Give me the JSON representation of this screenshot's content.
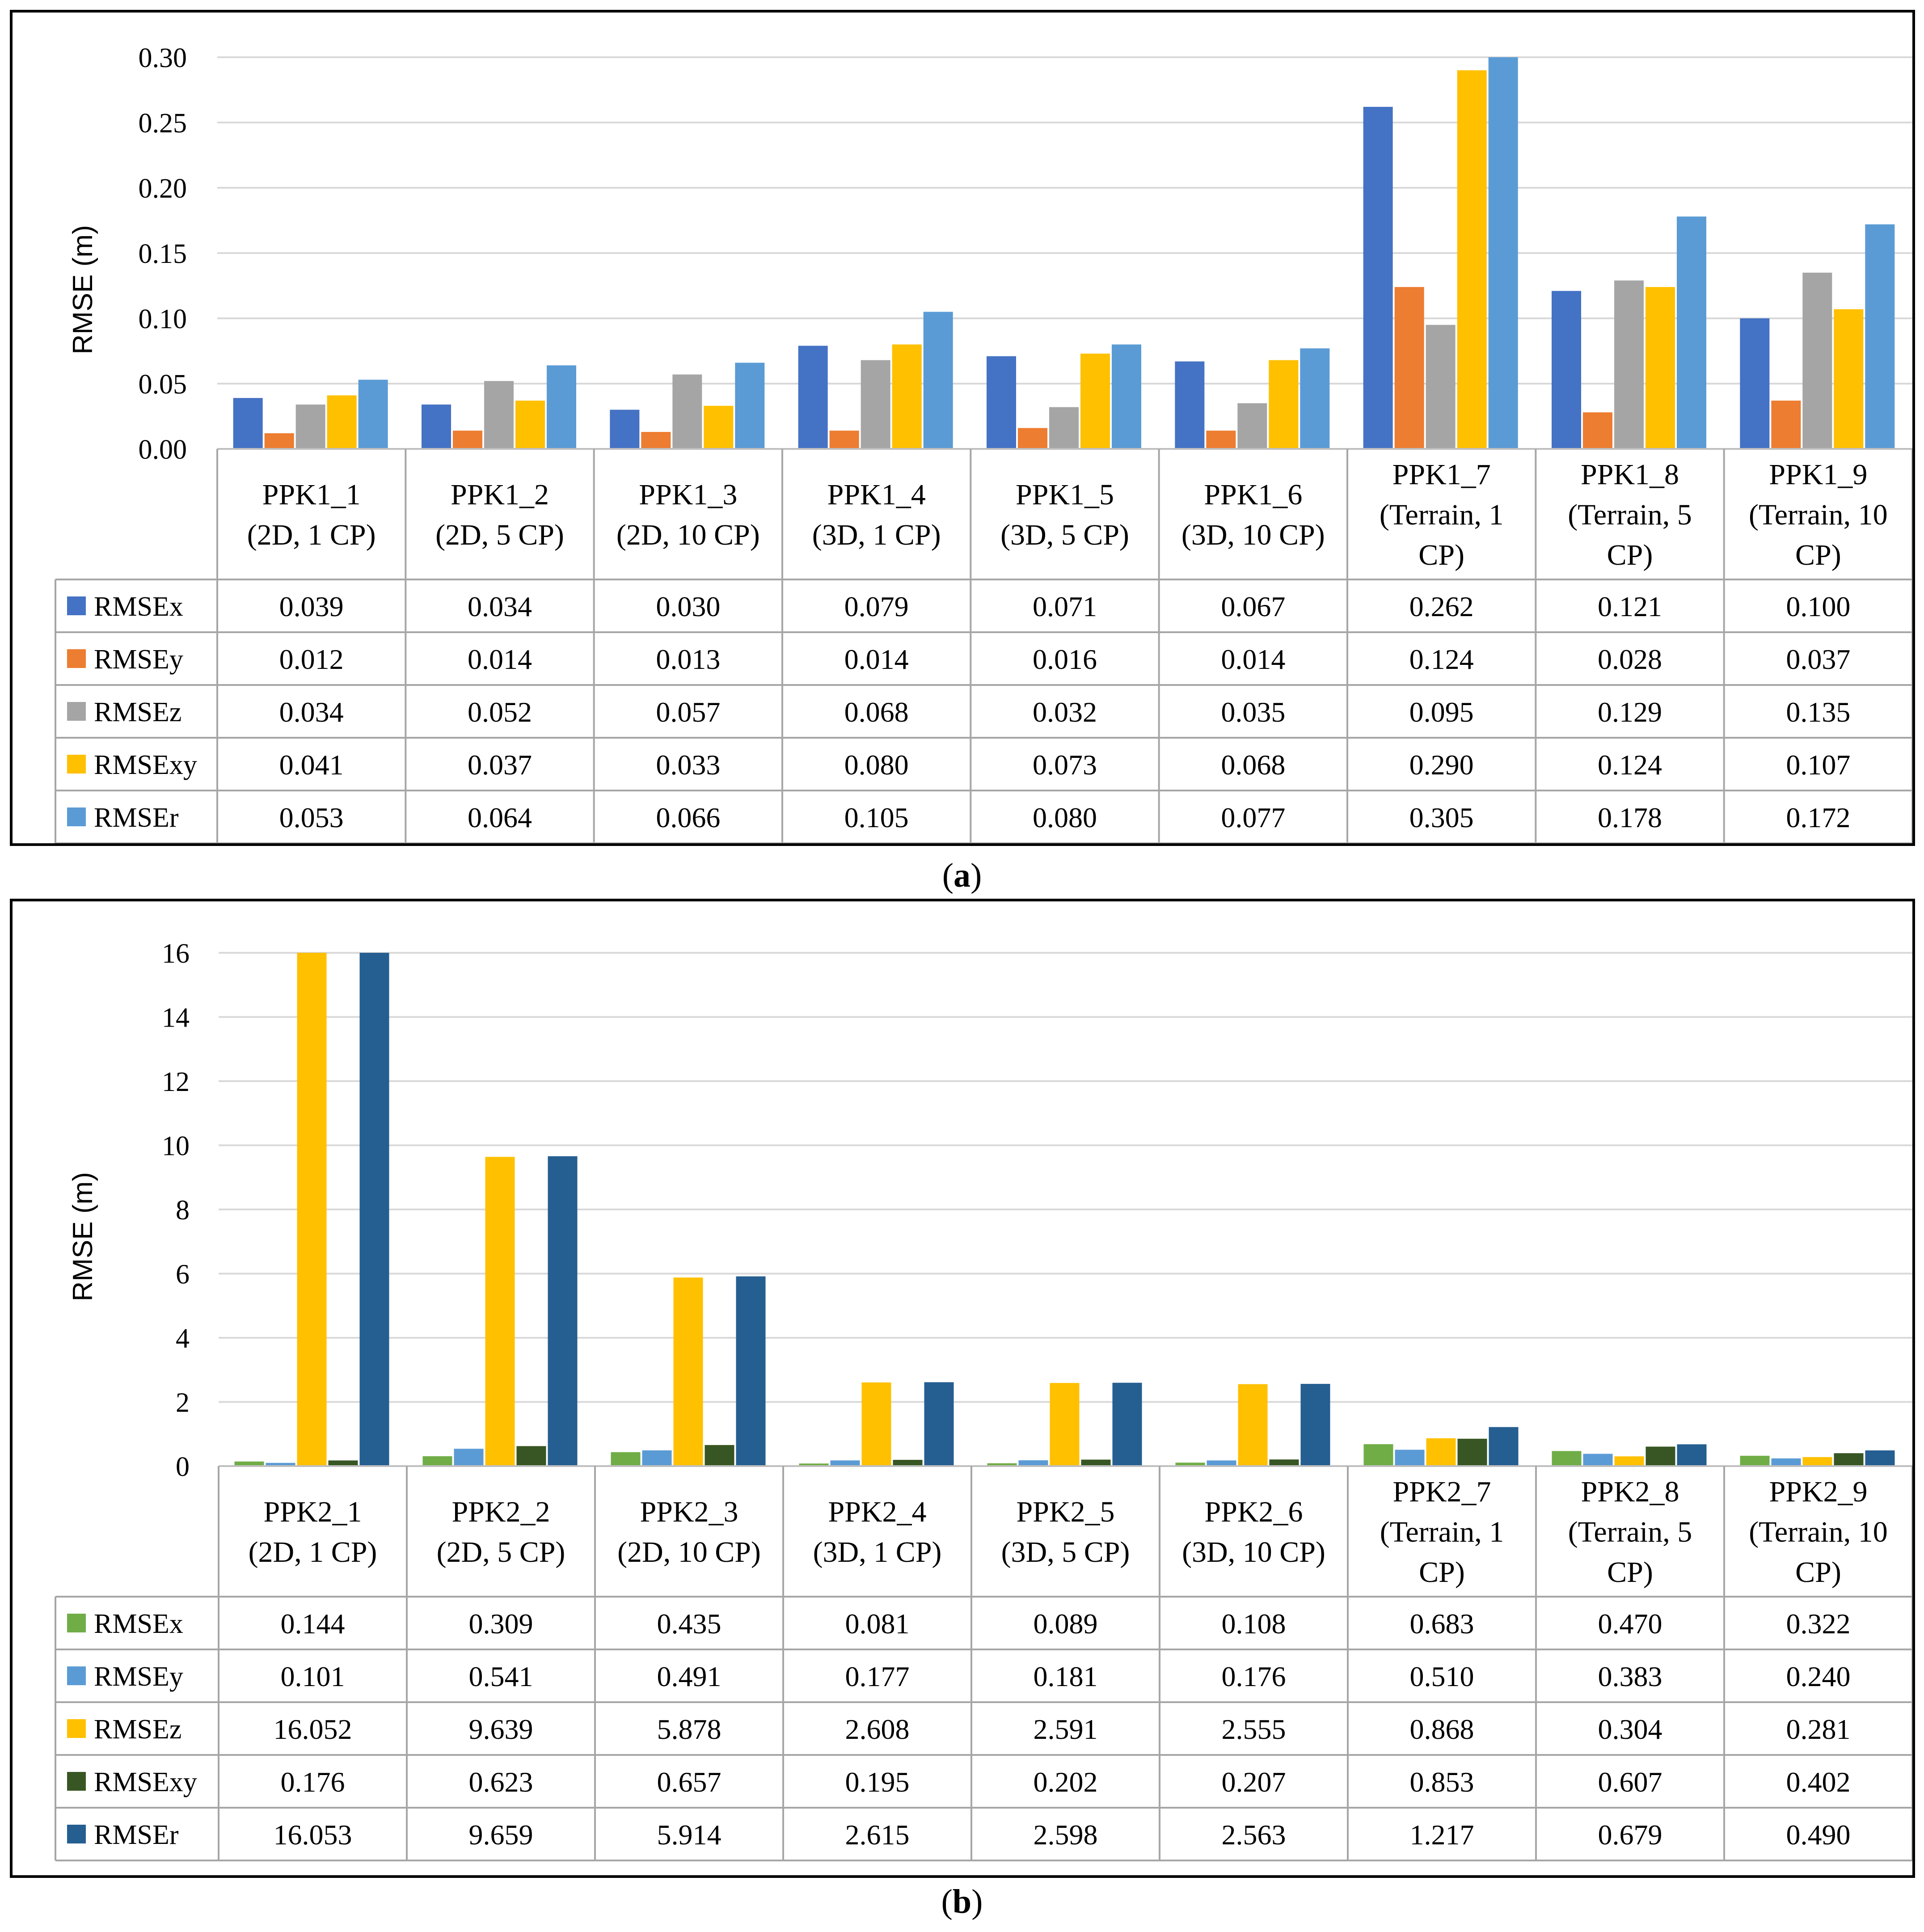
{
  "captions": {
    "a_open": "(",
    "a_letter": "a",
    "a_close": ")",
    "b_open": "(",
    "b_letter": "b",
    "b_close": ")"
  },
  "chart_data": [
    {
      "type": "bar",
      "panel": "a",
      "ylabel": "RMSE (m)",
      "ylim": [
        0,
        0.3
      ],
      "yticks": [
        "0.00",
        "0.05",
        "0.10",
        "0.15",
        "0.20",
        "0.25",
        "0.30"
      ],
      "grid": true,
      "legend": "data table",
      "categories": [
        [
          "PPK1_1",
          "(2D, 1 CP)"
        ],
        [
          "PPK1_2",
          "(2D, 5 CP)"
        ],
        [
          "PPK1_3",
          "(2D, 10 CP)"
        ],
        [
          "PPK1_4",
          "(3D, 1 CP)"
        ],
        [
          "PPK1_5",
          "(3D, 5 CP)"
        ],
        [
          "PPK1_6",
          "(3D, 10 CP)"
        ],
        [
          "PPK1_7",
          "(Terrain, 1",
          "CP)"
        ],
        [
          "PPK1_8",
          "(Terrain, 5",
          "CP)"
        ],
        [
          "PPK1_9",
          "(Terrain, 10",
          "CP)"
        ]
      ],
      "series": [
        {
          "name": "RMSEx",
          "color": "#4472C4",
          "values": [
            0.039,
            0.034,
            0.03,
            0.079,
            0.071,
            0.067,
            0.262,
            0.121,
            0.1
          ],
          "labels": [
            "0.039",
            "0.034",
            "0.030",
            "0.079",
            "0.071",
            "0.067",
            "0.262",
            "0.121",
            "0.100"
          ]
        },
        {
          "name": "RMSEy",
          "color": "#ED7D31",
          "values": [
            0.012,
            0.014,
            0.013,
            0.014,
            0.016,
            0.014,
            0.124,
            0.028,
            0.037
          ],
          "labels": [
            "0.012",
            "0.014",
            "0.013",
            "0.014",
            "0.016",
            "0.014",
            "0.124",
            "0.028",
            "0.037"
          ]
        },
        {
          "name": "RMSEz",
          "color": "#A5A5A5",
          "values": [
            0.034,
            0.052,
            0.057,
            0.068,
            0.032,
            0.035,
            0.095,
            0.129,
            0.135
          ],
          "labels": [
            "0.034",
            "0.052",
            "0.057",
            "0.068",
            "0.032",
            "0.035",
            "0.095",
            "0.129",
            "0.135"
          ]
        },
        {
          "name": "RMSExy",
          "color": "#FFC000",
          "values": [
            0.041,
            0.037,
            0.033,
            0.08,
            0.073,
            0.068,
            0.29,
            0.124,
            0.107
          ],
          "labels": [
            "0.041",
            "0.037",
            "0.033",
            "0.080",
            "0.073",
            "0.068",
            "0.290",
            "0.124",
            "0.107"
          ]
        },
        {
          "name": "RMSEr",
          "color": "#5B9BD5",
          "values": [
            0.053,
            0.064,
            0.066,
            0.105,
            0.08,
            0.077,
            0.305,
            0.178,
            0.172
          ],
          "labels": [
            "0.053",
            "0.064",
            "0.066",
            "0.105",
            "0.080",
            "0.077",
            "0.305",
            "0.178",
            "0.172"
          ]
        }
      ]
    },
    {
      "type": "bar",
      "panel": "b",
      "ylabel": "RMSE (m)",
      "ylim": [
        0,
        16
      ],
      "yticks": [
        "0",
        "2",
        "4",
        "6",
        "8",
        "10",
        "12",
        "14",
        "16"
      ],
      "grid": true,
      "legend": "data table",
      "categories": [
        [
          "PPK2_1",
          "(2D, 1 CP)"
        ],
        [
          "PPK2_2",
          "(2D, 5 CP)"
        ],
        [
          "PPK2_3",
          "(2D, 10 CP)"
        ],
        [
          "PPK2_4",
          "(3D, 1 CP)"
        ],
        [
          "PPK2_5",
          "(3D, 5 CP)"
        ],
        [
          "PPK2_6",
          "(3D, 10 CP)"
        ],
        [
          "PPK2_7",
          "(Terrain, 1",
          "CP)"
        ],
        [
          "PPK2_8",
          "(Terrain, 5",
          "CP)"
        ],
        [
          "PPK2_9",
          "(Terrain, 10",
          "CP)"
        ]
      ],
      "series": [
        {
          "name": "RMSEx",
          "color": "#70AD47",
          "values": [
            0.144,
            0.309,
            0.435,
            0.081,
            0.089,
            0.108,
            0.683,
            0.47,
            0.322
          ],
          "labels": [
            "0.144",
            "0.309",
            "0.435",
            "0.081",
            "0.089",
            "0.108",
            "0.683",
            "0.470",
            "0.322"
          ]
        },
        {
          "name": "RMSEy",
          "color": "#5B9BD5",
          "values": [
            0.101,
            0.541,
            0.491,
            0.177,
            0.181,
            0.176,
            0.51,
            0.383,
            0.24
          ],
          "labels": [
            "0.101",
            "0.541",
            "0.491",
            "0.177",
            "0.181",
            "0.176",
            "0.510",
            "0.383",
            "0.240"
          ]
        },
        {
          "name": "RMSEz",
          "color": "#FFC000",
          "values": [
            16.052,
            9.639,
            5.878,
            2.608,
            2.591,
            2.555,
            0.868,
            0.304,
            0.281
          ],
          "labels": [
            "16.052",
            "9.639",
            "5.878",
            "2.608",
            "2.591",
            "2.555",
            "0.868",
            "0.304",
            "0.281"
          ]
        },
        {
          "name": "RMSExy",
          "color": "#375623",
          "values": [
            0.176,
            0.623,
            0.657,
            0.195,
            0.202,
            0.207,
            0.853,
            0.607,
            0.402
          ],
          "labels": [
            "0.176",
            "0.623",
            "0.657",
            "0.195",
            "0.202",
            "0.207",
            "0.853",
            "0.607",
            "0.402"
          ]
        },
        {
          "name": "RMSEr",
          "color": "#255E91",
          "values": [
            16.053,
            9.659,
            5.914,
            2.615,
            2.598,
            2.563,
            1.217,
            0.679,
            0.49
          ],
          "labels": [
            "16.053",
            "9.659",
            "5.914",
            "2.615",
            "2.598",
            "2.563",
            "1.217",
            "0.679",
            "0.490"
          ]
        }
      ]
    }
  ]
}
